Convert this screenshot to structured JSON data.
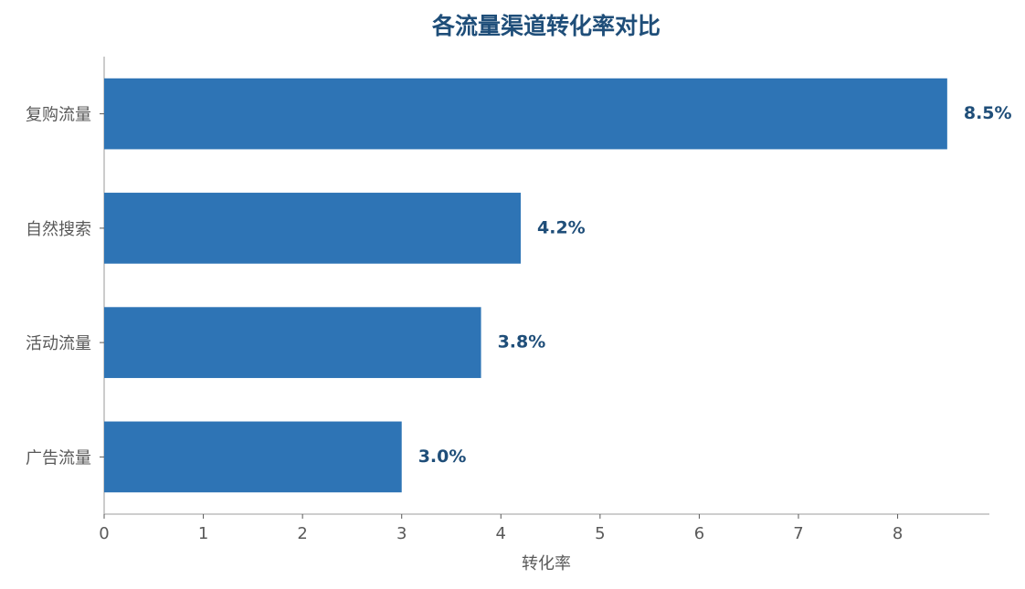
{
  "chart_data": {
    "type": "barh",
    "title": "各流量渠道转化率对比",
    "categories": [
      "复购流量",
      "自然搜索",
      "活动流量",
      "广告流量"
    ],
    "values": [
      8.5,
      4.2,
      3.8,
      3.0
    ],
    "value_labels": [
      "8.5%",
      "4.2%",
      "3.8%",
      "3.0%"
    ],
    "color": "#2e74b5",
    "xlabel": "转化率",
    "xlim": [
      0,
      8.925
    ],
    "xticks": [
      0,
      1,
      2,
      3,
      4,
      5,
      6,
      7,
      8
    ],
    "grid": false
  }
}
